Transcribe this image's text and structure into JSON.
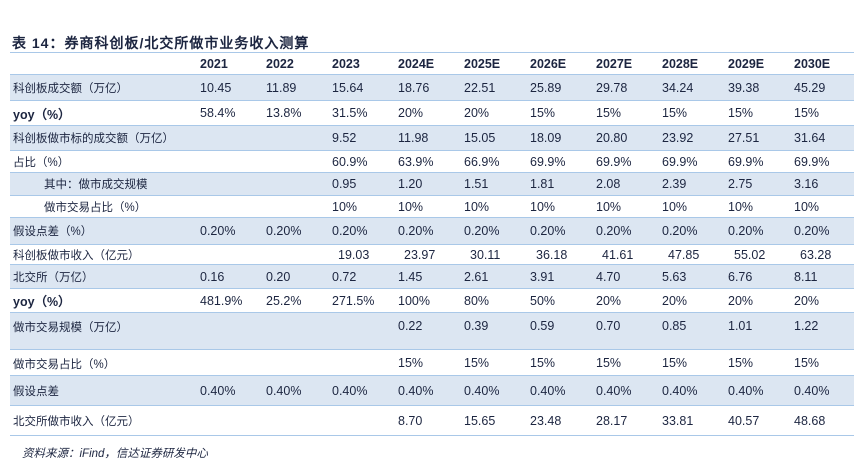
{
  "title": "表 14：券商科创板/北交所做市业务收入测算",
  "columns": [
    "2021",
    "2022",
    "2023",
    "2024E",
    "2025E",
    "2026E",
    "2027E",
    "2028E",
    "2029E",
    "2030E"
  ],
  "rows": [
    {
      "label": "科创板成交额（万亿）",
      "values": [
        "10.45",
        "11.89",
        "15.64",
        "18.76",
        "22.51",
        "25.89",
        "29.78",
        "34.24",
        "39.38",
        "45.29"
      ]
    },
    {
      "label": "yoy（%）",
      "values": [
        "58.4%",
        "13.8%",
        "31.5%",
        "20%",
        "20%",
        "15%",
        "15%",
        "15%",
        "15%",
        "15%"
      ]
    },
    {
      "label": "科创板做市标的成交额（万亿）",
      "values": [
        "",
        "",
        "9.52",
        "11.98",
        "15.05",
        "18.09",
        "20.80",
        "23.92",
        "27.51",
        "31.64"
      ]
    },
    {
      "label": "占比（%）",
      "values": [
        "",
        "",
        "60.9%",
        "63.9%",
        "66.9%",
        "69.9%",
        "69.9%",
        "69.9%",
        "69.9%",
        "69.9%"
      ]
    },
    {
      "label": "其中：做市成交规模",
      "values": [
        "",
        "",
        "0.95",
        "1.20",
        "1.51",
        "1.81",
        "2.08",
        "2.39",
        "2.75",
        "3.16"
      ]
    },
    {
      "label": "做市交易占比（%）",
      "values": [
        "",
        "",
        "10%",
        "10%",
        "10%",
        "10%",
        "10%",
        "10%",
        "10%",
        "10%"
      ]
    },
    {
      "label": "假设点差（%）",
      "values": [
        "0.20%",
        "0.20%",
        "0.20%",
        "0.20%",
        "0.20%",
        "0.20%",
        "0.20%",
        "0.20%",
        "0.20%",
        "0.20%"
      ]
    },
    {
      "label": "科创板做市收入（亿元）",
      "values": [
        "",
        "",
        "19.03",
        "23.97",
        "30.11",
        "36.18",
        "41.61",
        "47.85",
        "55.02",
        "63.28"
      ]
    },
    {
      "label": "北交所（万亿）",
      "values": [
        "0.16",
        "0.20",
        "0.72",
        "1.45",
        "2.61",
        "3.91",
        "4.70",
        "5.63",
        "6.76",
        "8.11"
      ]
    },
    {
      "label": "yoy（%）",
      "values": [
        "481.9%",
        "25.2%",
        "271.5%",
        "100%",
        "80%",
        "50%",
        "20%",
        "20%",
        "20%",
        "20%"
      ]
    },
    {
      "label": "做市交易规模（万亿）",
      "values": [
        "",
        "",
        "",
        "0.22",
        "0.39",
        "0.59",
        "0.70",
        "0.85",
        "1.01",
        "1.22"
      ]
    },
    {
      "label": "做市交易占比（%）",
      "values": [
        "",
        "",
        "",
        "15%",
        "15%",
        "15%",
        "15%",
        "15%",
        "15%",
        "15%"
      ]
    },
    {
      "label": "假设点差",
      "values": [
        "0.40%",
        "0.40%",
        "0.40%",
        "0.40%",
        "0.40%",
        "0.40%",
        "0.40%",
        "0.40%",
        "0.40%",
        "0.40%"
      ]
    },
    {
      "label": "北交所做市收入（亿元）",
      "values": [
        "",
        "",
        "",
        "8.70",
        "15.65",
        "23.48",
        "28.17",
        "33.81",
        "40.57",
        "48.68"
      ]
    }
  ],
  "source": "资料来源：iFind，信达证券研发中心",
  "colors": {
    "row_fill": "#dce6f2",
    "rule": "#a9c8e8",
    "text": "#1c2540"
  }
}
